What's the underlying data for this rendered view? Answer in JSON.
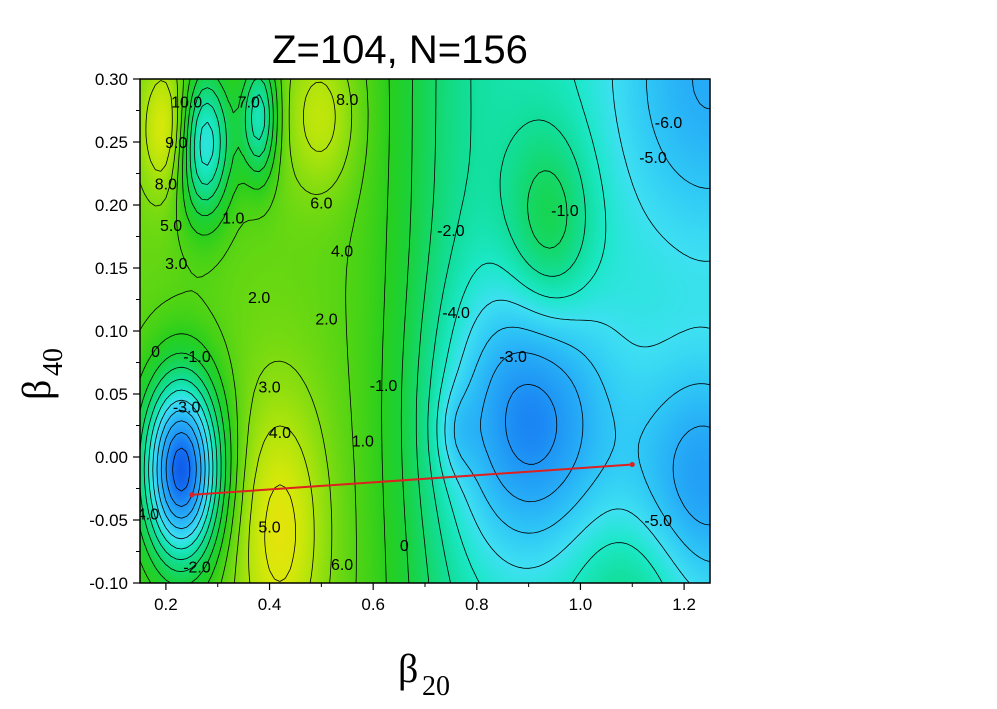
{
  "chart_data": {
    "type": "heatmap",
    "title": "Z=104, N=156",
    "xlabel": {
      "symbol": "β",
      "subscript": "20"
    },
    "ylabel": {
      "symbol": "β",
      "subscript": "40"
    },
    "xlim": [
      0.15,
      1.25
    ],
    "ylim": [
      -0.1,
      0.3
    ],
    "x_ticks": [
      {
        "value": 0.2,
        "label": "0.2"
      },
      {
        "value": 0.4,
        "label": "0.4"
      },
      {
        "value": 0.6,
        "label": "0.6"
      },
      {
        "value": 0.8,
        "label": "0.8"
      },
      {
        "value": 1.0,
        "label": "1.0"
      },
      {
        "value": 1.2,
        "label": "1.2"
      }
    ],
    "y_ticks": [
      {
        "value": 0.3,
        "label": "0.30"
      },
      {
        "value": 0.25,
        "label": "0.25"
      },
      {
        "value": 0.2,
        "label": "0.20"
      },
      {
        "value": 0.15,
        "label": "0.15"
      },
      {
        "value": 0.1,
        "label": "0.10"
      },
      {
        "value": 0.05,
        "label": "0.05"
      },
      {
        "value": 0.0,
        "label": "0.00"
      },
      {
        "value": -0.05,
        "label": "-0.05"
      },
      {
        "value": -0.1,
        "label": "-0.10"
      }
    ],
    "contour_labels": [
      {
        "x": 0.24,
        "y": 0.282,
        "text": "10.0"
      },
      {
        "x": 0.36,
        "y": 0.282,
        "text": "7.0"
      },
      {
        "x": 0.55,
        "y": 0.284,
        "text": "8.0"
      },
      {
        "x": 0.22,
        "y": 0.25,
        "text": "9.0"
      },
      {
        "x": 0.2,
        "y": 0.217,
        "text": "8.0"
      },
      {
        "x": 0.21,
        "y": 0.184,
        "text": "5.0"
      },
      {
        "x": 0.22,
        "y": 0.154,
        "text": "3.0"
      },
      {
        "x": 0.33,
        "y": 0.19,
        "text": "1.0"
      },
      {
        "x": 0.5,
        "y": 0.202,
        "text": "6.0"
      },
      {
        "x": 0.54,
        "y": 0.164,
        "text": "4.0"
      },
      {
        "x": 0.38,
        "y": 0.127,
        "text": "2.0"
      },
      {
        "x": 0.51,
        "y": 0.11,
        "text": "2.0"
      },
      {
        "x": 0.18,
        "y": 0.084,
        "text": "0"
      },
      {
        "x": 0.26,
        "y": 0.08,
        "text": "-1.0"
      },
      {
        "x": 0.24,
        "y": 0.04,
        "text": "-3.0"
      },
      {
        "x": 0.4,
        "y": 0.056,
        "text": "3.0"
      },
      {
        "x": 0.62,
        "y": 0.057,
        "text": "-1.0"
      },
      {
        "x": 0.42,
        "y": 0.02,
        "text": "4.0"
      },
      {
        "x": 0.58,
        "y": 0.013,
        "text": "1.0"
      },
      {
        "x": 0.16,
        "y": -0.045,
        "text": "-4.0"
      },
      {
        "x": 0.4,
        "y": -0.055,
        "text": "5.0"
      },
      {
        "x": 0.26,
        "y": -0.087,
        "text": "-2.0"
      },
      {
        "x": 0.54,
        "y": -0.085,
        "text": "6.0"
      },
      {
        "x": 0.66,
        "y": -0.07,
        "text": "0"
      },
      {
        "x": 0.75,
        "y": 0.18,
        "text": "-2.0"
      },
      {
        "x": 0.76,
        "y": 0.115,
        "text": "-4.0"
      },
      {
        "x": 0.87,
        "y": 0.08,
        "text": "-3.0"
      },
      {
        "x": 0.97,
        "y": 0.196,
        "text": "-1.0"
      },
      {
        "x": 1.17,
        "y": 0.266,
        "text": "-6.0"
      },
      {
        "x": 1.14,
        "y": 0.238,
        "text": "-5.0"
      },
      {
        "x": 1.15,
        "y": -0.05,
        "text": "-5.0"
      }
    ],
    "colorscale": [
      {
        "level": -7,
        "color": "#0b4fe6"
      },
      {
        "level": -6,
        "color": "#1573f2"
      },
      {
        "level": -5,
        "color": "#1f96f5"
      },
      {
        "level": -4,
        "color": "#27aef7"
      },
      {
        "level": -3,
        "color": "#2fc8f6"
      },
      {
        "level": -2,
        "color": "#3ee0f2"
      },
      {
        "level": -1,
        "color": "#1ce8c8"
      },
      {
        "level": 0,
        "color": "#12de9a"
      },
      {
        "level": 1,
        "color": "#14d86a"
      },
      {
        "level": 2,
        "color": "#1ad23c"
      },
      {
        "level": 3,
        "color": "#28cf1e"
      },
      {
        "level": 4,
        "color": "#52d414"
      },
      {
        "level": 5,
        "color": "#80dc10"
      },
      {
        "level": 6,
        "color": "#aee40c"
      },
      {
        "level": 7,
        "color": "#d8e80a"
      },
      {
        "level": 8,
        "color": "#f7dc0a"
      },
      {
        "level": 9,
        "color": "#f7a80c"
      },
      {
        "level": 10,
        "color": "#f07010"
      },
      {
        "level": 11,
        "color": "#e23a14"
      }
    ],
    "fission_path": {
      "color": "#dd2020",
      "start": {
        "x": 0.25,
        "y": -0.03
      },
      "end": {
        "x": 1.1,
        "y": -0.006
      }
    },
    "grid": false,
    "legend": "none"
  }
}
